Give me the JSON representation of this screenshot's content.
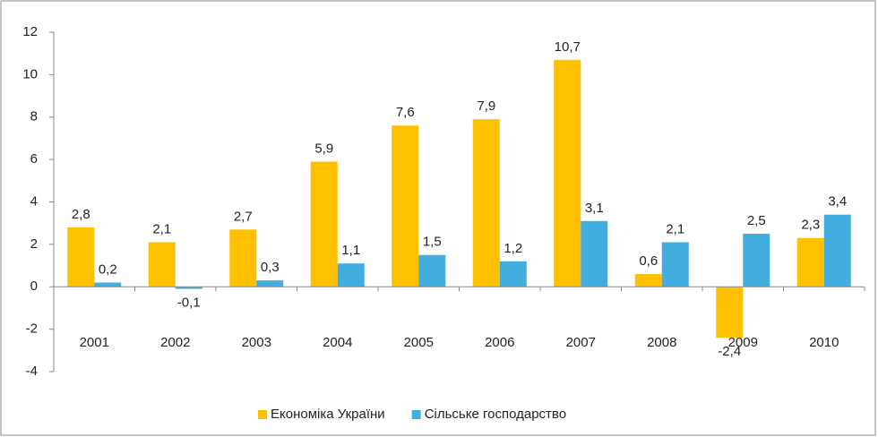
{
  "chart_data": {
    "type": "bar",
    "categories": [
      "2001",
      "2002",
      "2003",
      "2004",
      "2005",
      "2006",
      "2007",
      "2008",
      "2009",
      "2010"
    ],
    "series": [
      {
        "name": "Економіка України",
        "color": "#ffc000",
        "values": [
          2.8,
          2.1,
          2.7,
          5.9,
          7.6,
          7.9,
          10.7,
          0.6,
          -2.4,
          2.3
        ],
        "value_labels": [
          "2,8",
          "2,1",
          "2,7",
          "5,9",
          "7,6",
          "7,9",
          "10,7",
          "0,6",
          "-2,4",
          "2,3"
        ]
      },
      {
        "name": "Сільське господарство",
        "color": "#41aedf",
        "values": [
          0.2,
          -0.1,
          0.3,
          1.1,
          1.5,
          1.2,
          3.1,
          2.1,
          2.5,
          3.4
        ],
        "value_labels": [
          "0,2",
          "-0,1",
          "0,3",
          "1,1",
          "1,5",
          "1,2",
          "3,1",
          "2,1",
          "2,5",
          "3,4"
        ]
      }
    ],
    "ylim": [
      -4,
      12
    ],
    "yticks": [
      -4,
      -2,
      0,
      2,
      4,
      6,
      8,
      10,
      12
    ],
    "grid": false,
    "legend": "bottom"
  }
}
